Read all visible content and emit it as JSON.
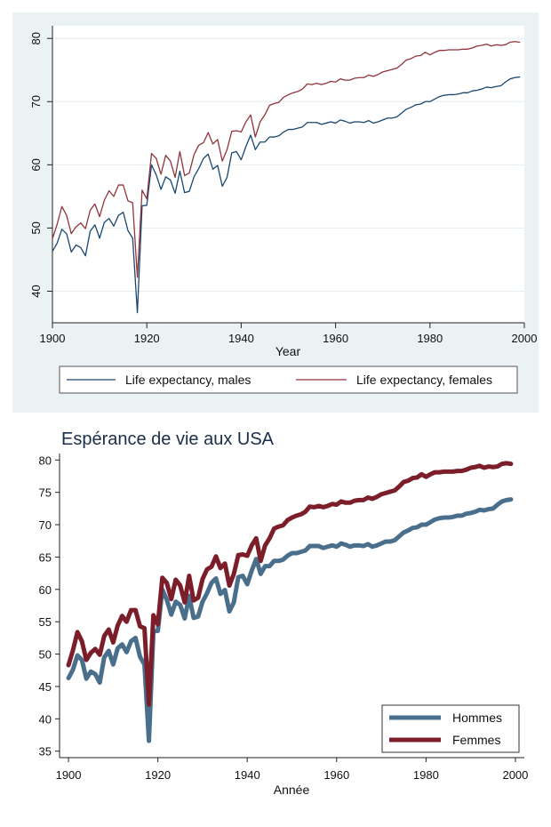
{
  "chart_data": [
    {
      "type": "line",
      "title": "",
      "xlabel": "Year",
      "ylabel": "",
      "xlim": [
        1900,
        2000
      ],
      "ylim": [
        35,
        82
      ],
      "xticks": [
        1900,
        1920,
        1940,
        1960,
        1980,
        2000
      ],
      "yticks": [
        40,
        50,
        60,
        70,
        80
      ],
      "grid": "horizontal",
      "legend_position": "bottom",
      "background": "#eaf2f3",
      "plot_background": "#ffffff",
      "x": [
        1900,
        1901,
        1902,
        1903,
        1904,
        1905,
        1906,
        1907,
        1908,
        1909,
        1910,
        1911,
        1912,
        1913,
        1914,
        1915,
        1916,
        1917,
        1918,
        1919,
        1920,
        1921,
        1922,
        1923,
        1924,
        1925,
        1926,
        1927,
        1928,
        1929,
        1930,
        1931,
        1932,
        1933,
        1934,
        1935,
        1936,
        1937,
        1938,
        1939,
        1940,
        1941,
        1942,
        1943,
        1944,
        1945,
        1946,
        1947,
        1948,
        1949,
        1950,
        1951,
        1952,
        1953,
        1954,
        1955,
        1956,
        1957,
        1958,
        1959,
        1960,
        1961,
        1962,
        1963,
        1964,
        1965,
        1966,
        1967,
        1968,
        1969,
        1970,
        1971,
        1972,
        1973,
        1974,
        1975,
        1976,
        1977,
        1978,
        1979,
        1980,
        1981,
        1982,
        1983,
        1984,
        1985,
        1986,
        1987,
        1988,
        1989,
        1990,
        1991,
        1992,
        1993,
        1994,
        1995,
        1996,
        1997,
        1998,
        1999
      ],
      "series": [
        {
          "name": "Life expectancy, males",
          "color": "#1a476f",
          "values": [
            46.3,
            47.6,
            49.8,
            49.1,
            46.2,
            47.3,
            46.9,
            45.6,
            49.5,
            50.5,
            48.4,
            50.9,
            51.5,
            50.3,
            52.0,
            52.5,
            49.6,
            48.4,
            36.6,
            53.5,
            53.6,
            60.0,
            58.4,
            56.1,
            58.1,
            57.6,
            55.5,
            59.0,
            55.6,
            55.8,
            58.1,
            59.4,
            61.0,
            61.7,
            59.3,
            59.9,
            56.6,
            58.0,
            61.9,
            62.1,
            60.8,
            62.9,
            64.7,
            62.4,
            63.6,
            63.6,
            64.4,
            64.4,
            64.6,
            65.2,
            65.6,
            65.6,
            65.8,
            66.0,
            66.7,
            66.7,
            66.7,
            66.4,
            66.6,
            66.8,
            66.6,
            67.1,
            66.9,
            66.6,
            66.8,
            66.8,
            66.7,
            67.0,
            66.6,
            66.8,
            67.1,
            67.4,
            67.4,
            67.6,
            68.2,
            68.8,
            69.1,
            69.5,
            69.6,
            70.0,
            70.0,
            70.4,
            70.8,
            71.0,
            71.1,
            71.1,
            71.2,
            71.4,
            71.4,
            71.7,
            71.8,
            72.0,
            72.3,
            72.2,
            72.4,
            72.5,
            73.1,
            73.6,
            73.8,
            73.9
          ]
        },
        {
          "name": "Life expectancy, females",
          "color": "#90353b",
          "values": [
            48.3,
            50.6,
            53.4,
            52.0,
            49.1,
            50.2,
            50.8,
            49.9,
            52.8,
            53.8,
            51.8,
            54.4,
            55.9,
            55.0,
            56.8,
            56.8,
            54.3,
            54.0,
            42.2,
            56.0,
            54.6,
            61.8,
            61.0,
            58.5,
            61.5,
            60.6,
            58.0,
            62.1,
            58.3,
            58.7,
            61.6,
            63.1,
            63.5,
            65.1,
            63.3,
            64.0,
            60.6,
            62.4,
            65.3,
            65.4,
            65.2,
            66.8,
            67.9,
            64.4,
            66.8,
            67.9,
            69.4,
            69.7,
            69.9,
            70.7,
            71.1,
            71.4,
            71.6,
            72.0,
            72.8,
            72.7,
            72.9,
            72.7,
            72.9,
            73.2,
            73.1,
            73.6,
            73.4,
            73.4,
            73.7,
            73.8,
            73.8,
            74.2,
            74.0,
            74.3,
            74.7,
            74.9,
            75.1,
            75.3,
            75.9,
            76.6,
            76.8,
            77.2,
            77.3,
            77.8,
            77.4,
            77.8,
            78.1,
            78.1,
            78.2,
            78.2,
            78.2,
            78.3,
            78.3,
            78.5,
            78.8,
            78.9,
            79.1,
            78.8,
            79.0,
            78.9,
            79.0,
            79.4,
            79.5,
            79.4
          ]
        }
      ]
    },
    {
      "type": "line",
      "title": "Espérance de vie aux USA",
      "xlabel": "Année",
      "ylabel": "",
      "xlim": [
        1898,
        2002
      ],
      "ylim": [
        34,
        81
      ],
      "xticks": [
        1900,
        1920,
        1940,
        1960,
        1980,
        2000
      ],
      "yticks": [
        35,
        40,
        45,
        50,
        55,
        60,
        65,
        70,
        75,
        80
      ],
      "grid": "none",
      "legend_position": "bottom-right",
      "background": "#ffffff",
      "plot_background": "#ffffff",
      "x": [
        1900,
        1901,
        1902,
        1903,
        1904,
        1905,
        1906,
        1907,
        1908,
        1909,
        1910,
        1911,
        1912,
        1913,
        1914,
        1915,
        1916,
        1917,
        1918,
        1919,
        1920,
        1921,
        1922,
        1923,
        1924,
        1925,
        1926,
        1927,
        1928,
        1929,
        1930,
        1931,
        1932,
        1933,
        1934,
        1935,
        1936,
        1937,
        1938,
        1939,
        1940,
        1941,
        1942,
        1943,
        1944,
        1945,
        1946,
        1947,
        1948,
        1949,
        1950,
        1951,
        1952,
        1953,
        1954,
        1955,
        1956,
        1957,
        1958,
        1959,
        1960,
        1961,
        1962,
        1963,
        1964,
        1965,
        1966,
        1967,
        1968,
        1969,
        1970,
        1971,
        1972,
        1973,
        1974,
        1975,
        1976,
        1977,
        1978,
        1979,
        1980,
        1981,
        1982,
        1983,
        1984,
        1985,
        1986,
        1987,
        1988,
        1989,
        1990,
        1991,
        1992,
        1993,
        1994,
        1995,
        1996,
        1997,
        1998,
        1999
      ],
      "series": [
        {
          "name": "Hommes",
          "color": "#4a6f8c",
          "values": [
            46.3,
            47.6,
            49.8,
            49.1,
            46.2,
            47.3,
            46.9,
            45.6,
            49.5,
            50.5,
            48.4,
            50.9,
            51.5,
            50.3,
            52.0,
            52.5,
            49.6,
            48.4,
            36.6,
            53.5,
            53.6,
            60.0,
            58.4,
            56.1,
            58.1,
            57.6,
            55.5,
            59.0,
            55.6,
            55.8,
            58.1,
            59.4,
            61.0,
            61.7,
            59.3,
            59.9,
            56.6,
            58.0,
            61.9,
            62.1,
            60.8,
            62.9,
            64.7,
            62.4,
            63.6,
            63.6,
            64.4,
            64.4,
            64.6,
            65.2,
            65.6,
            65.6,
            65.8,
            66.0,
            66.7,
            66.7,
            66.7,
            66.4,
            66.6,
            66.8,
            66.6,
            67.1,
            66.9,
            66.6,
            66.8,
            66.8,
            66.7,
            67.0,
            66.6,
            66.8,
            67.1,
            67.4,
            67.4,
            67.6,
            68.2,
            68.8,
            69.1,
            69.5,
            69.6,
            70.0,
            70.0,
            70.4,
            70.8,
            71.0,
            71.1,
            71.1,
            71.2,
            71.4,
            71.4,
            71.7,
            71.8,
            72.0,
            72.3,
            72.2,
            72.4,
            72.5,
            73.1,
            73.6,
            73.8,
            73.9
          ]
        },
        {
          "name": "Femmes",
          "color": "#7b1e2a",
          "values": [
            48.3,
            50.6,
            53.4,
            52.0,
            49.1,
            50.2,
            50.8,
            49.9,
            52.8,
            53.8,
            51.8,
            54.4,
            55.9,
            55.0,
            56.8,
            56.8,
            54.3,
            54.0,
            42.2,
            56.0,
            54.6,
            61.8,
            61.0,
            58.5,
            61.5,
            60.6,
            58.0,
            62.1,
            58.3,
            58.7,
            61.6,
            63.1,
            63.5,
            65.1,
            63.3,
            64.0,
            60.6,
            62.4,
            65.3,
            65.4,
            65.2,
            66.8,
            67.9,
            64.4,
            66.8,
            67.9,
            69.4,
            69.7,
            69.9,
            70.7,
            71.1,
            71.4,
            71.6,
            72.0,
            72.8,
            72.7,
            72.9,
            72.7,
            72.9,
            73.2,
            73.1,
            73.6,
            73.4,
            73.4,
            73.7,
            73.8,
            73.8,
            74.2,
            74.0,
            74.3,
            74.7,
            74.9,
            75.1,
            75.3,
            75.9,
            76.6,
            76.8,
            77.2,
            77.3,
            77.8,
            77.4,
            77.8,
            78.1,
            78.1,
            78.2,
            78.2,
            78.2,
            78.3,
            78.3,
            78.5,
            78.8,
            78.9,
            79.1,
            78.8,
            79.0,
            78.9,
            79.0,
            79.4,
            79.5,
            79.4
          ]
        }
      ]
    }
  ]
}
